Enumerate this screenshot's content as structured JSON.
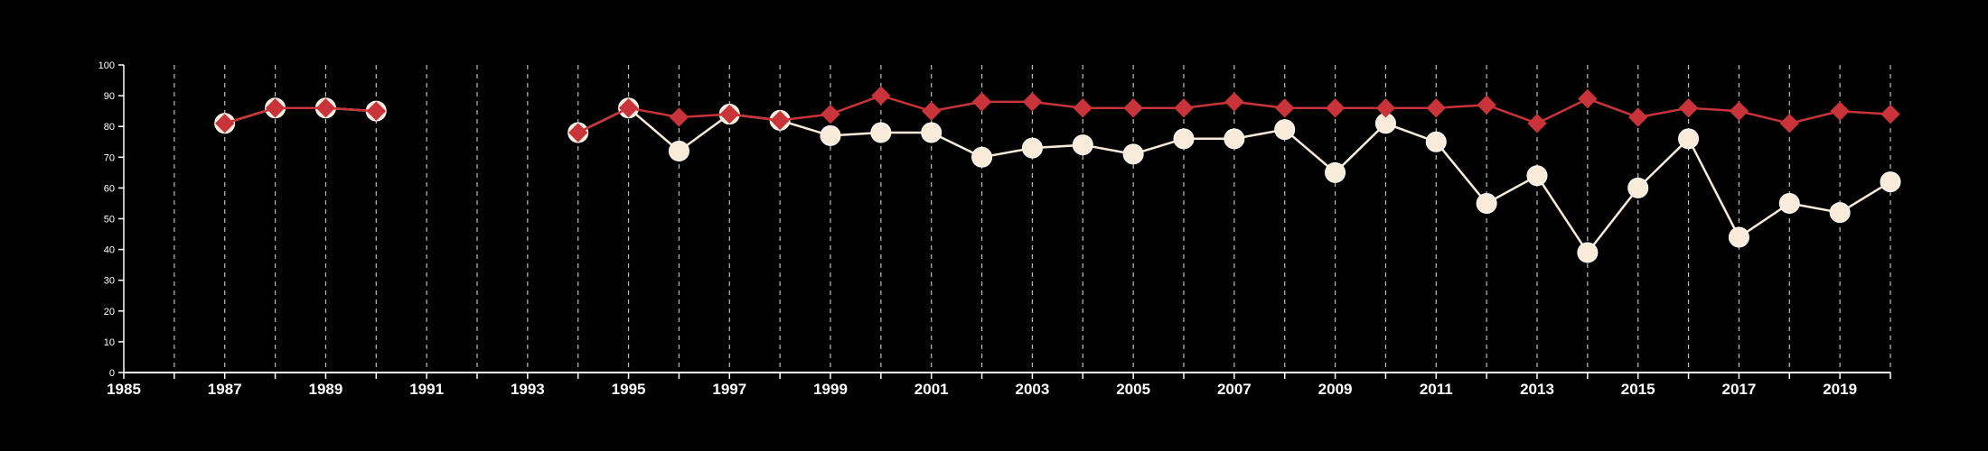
{
  "chart_data": {
    "type": "line",
    "title": "",
    "xlabel": "",
    "ylabel": "",
    "xlim": [
      1985,
      2020
    ],
    "ylim": [
      0,
      100
    ],
    "x_ticks": [
      "1985",
      "1987",
      "1989",
      "1991",
      "1993",
      "1995",
      "1997",
      "1999",
      "2001",
      "2003",
      "2005",
      "2007",
      "2009",
      "2011",
      "2013",
      "2015",
      "2017",
      "2019"
    ],
    "y_ticks": [
      "0",
      "10",
      "20",
      "30",
      "40",
      "50",
      "60",
      "70",
      "80",
      "90",
      "100"
    ],
    "vertical_gridlines_every_year": true,
    "x": [
      1987,
      1988,
      1989,
      1990,
      1991,
      1992,
      1993,
      1994,
      1995,
      1996,
      1997,
      1998,
      1999,
      2000,
      2001,
      2002,
      2003,
      2004,
      2005,
      2006,
      2007,
      2008,
      2009,
      2010,
      2011,
      2012,
      2013,
      2014,
      2015,
      2016,
      2017,
      2018,
      2019,
      2020
    ],
    "series": [
      {
        "marker": "diamond",
        "color": "#c8343a",
        "values": [
          81,
          86,
          86,
          85,
          null,
          null,
          null,
          78,
          86,
          83,
          84,
          82,
          84,
          90,
          85,
          88,
          88,
          86,
          86,
          86,
          88,
          86,
          86,
          86,
          86,
          87,
          81,
          89,
          83,
          86,
          85,
          81,
          85,
          84
        ]
      },
      {
        "marker": "circle",
        "color": "#f8ebd9",
        "values": [
          81,
          86,
          86,
          85,
          null,
          null,
          null,
          78,
          86,
          72,
          84,
          82,
          77,
          78,
          78,
          70,
          73,
          74,
          71,
          76,
          76,
          79,
          65,
          81,
          75,
          55,
          64,
          39,
          60,
          76,
          44,
          55,
          52,
          62
        ]
      }
    ]
  }
}
